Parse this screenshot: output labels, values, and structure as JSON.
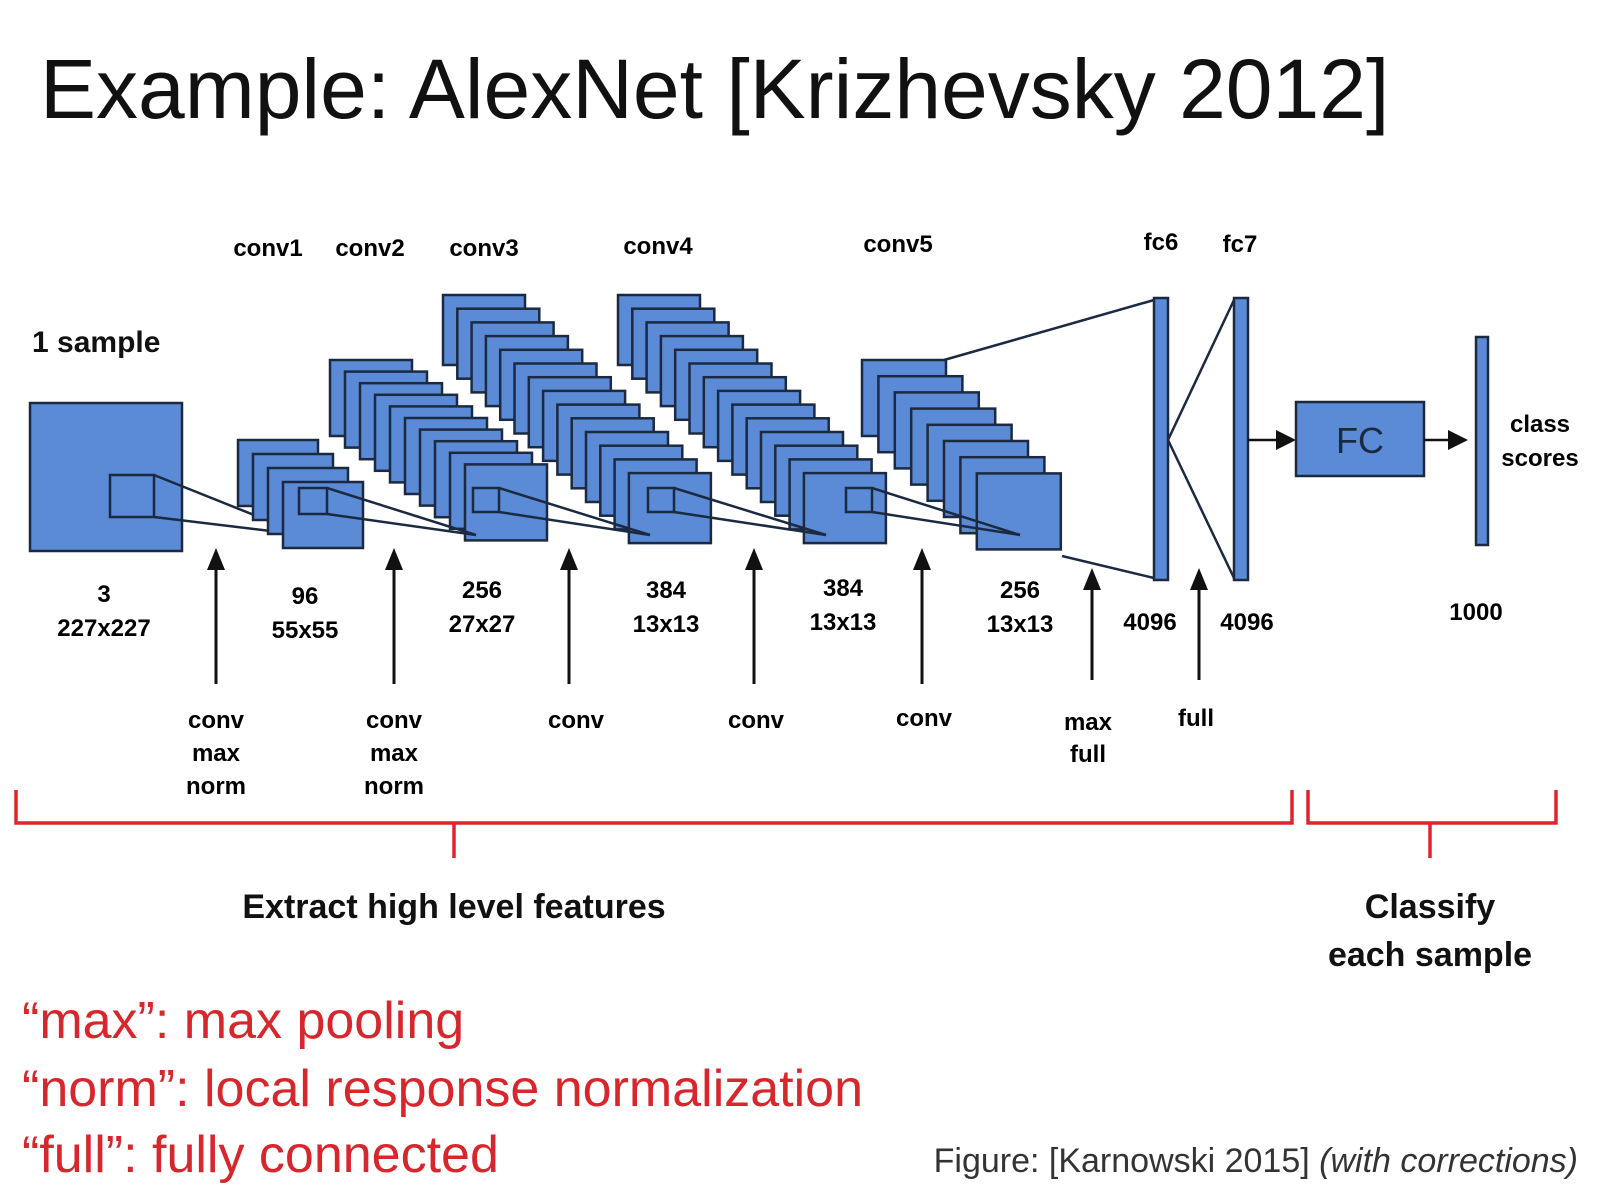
{
  "slide": {
    "title": "Example: AlexNet [Krizhevsky 2012]",
    "caption_main": "Figure: [Karnowski 2015] ",
    "caption_italic": "(with corrections)"
  },
  "diagram": {
    "sample_label": "1 sample",
    "layer_names": [
      "conv1",
      "conv2",
      "conv3",
      "conv4",
      "conv5",
      "fc6",
      "fc7"
    ],
    "input": {
      "channels": "3",
      "size": "227x227"
    },
    "feature_maps": [
      {
        "channels": "96",
        "size": "55x55"
      },
      {
        "channels": "256",
        "size": "27x27"
      },
      {
        "channels": "384",
        "size": "13x13"
      },
      {
        "channels": "384",
        "size": "13x13"
      },
      {
        "channels": "256",
        "size": "13x13"
      }
    ],
    "fc6_units": "4096",
    "fc7_units": "4096",
    "fc_box_label": "FC",
    "output_units": "1000",
    "output_label_line1": "class",
    "output_label_line2": "scores",
    "operations": [
      {
        "line1": "conv",
        "line2": "max",
        "line3": "norm"
      },
      {
        "line1": "conv",
        "line2": "max",
        "line3": "norm"
      },
      {
        "line1": "conv"
      },
      {
        "line1": "conv"
      },
      {
        "line1": "conv"
      },
      {
        "line1": "max",
        "line2": "full"
      },
      {
        "line1": "full"
      }
    ],
    "brackets": {
      "features_label": "Extract high level features",
      "classify_line1": "Classify",
      "classify_line2": "each sample"
    }
  },
  "legend": [
    "“max”: max pooling",
    "“norm”: local response normalization",
    "“full”: fully connected"
  ],
  "colors": {
    "block_fill": "#5b8bd6",
    "block_stroke": "#1b2a40",
    "bracket_red": "#e0242b",
    "legend_red": "#d8262d",
    "text_dark": "#111111",
    "caption_gray": "#333333"
  }
}
